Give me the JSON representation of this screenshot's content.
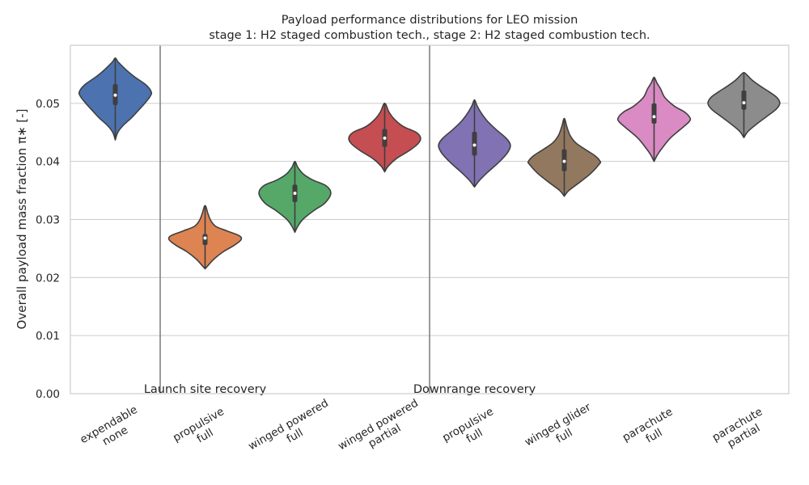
{
  "chart_data": {
    "type": "violin",
    "title": "Payload performance distributions for LEO mission",
    "subtitle": "stage 1: H2 staged combustion tech., stage 2: H2 staged combustion tech.",
    "ylabel": "Overall payload mass fraction π∗ [-]",
    "xlabel": "",
    "ylim": [
      0,
      0.06
    ],
    "yticks": [
      "0.00",
      "0.01",
      "0.02",
      "0.03",
      "0.04",
      "0.05"
    ],
    "grid": "horizontal",
    "categories": [
      {
        "line1": "expendable",
        "line2": "none",
        "color": "#4c72b0",
        "min": 0.0437,
        "max": 0.0578,
        "q1": 0.0497,
        "median": 0.0514,
        "q3": 0.0533,
        "profile": [
          [
            0.0437,
            0
          ],
          [
            0.045,
            0.07
          ],
          [
            0.0462,
            0.22
          ],
          [
            0.0475,
            0.45
          ],
          [
            0.0487,
            0.63
          ],
          [
            0.05,
            0.82
          ],
          [
            0.0512,
            0.97
          ],
          [
            0.052,
            1.0
          ],
          [
            0.0532,
            0.85
          ],
          [
            0.0545,
            0.55
          ],
          [
            0.0555,
            0.35
          ],
          [
            0.0565,
            0.18
          ],
          [
            0.0572,
            0.07
          ],
          [
            0.0578,
            0
          ]
        ]
      },
      {
        "line1": "propulsive",
        "line2": "full",
        "color": "#dd8452",
        "min": 0.0215,
        "max": 0.0324,
        "q1": 0.0256,
        "median": 0.0268,
        "q3": 0.0275,
        "profile": [
          [
            0.0215,
            0
          ],
          [
            0.0222,
            0.1
          ],
          [
            0.0232,
            0.25
          ],
          [
            0.0245,
            0.52
          ],
          [
            0.0255,
            0.8
          ],
          [
            0.0265,
            1.0
          ],
          [
            0.0272,
            0.95
          ],
          [
            0.028,
            0.62
          ],
          [
            0.0288,
            0.3
          ],
          [
            0.0298,
            0.16
          ],
          [
            0.031,
            0.08
          ],
          [
            0.0324,
            0
          ]
        ]
      },
      {
        "line1": "winged powered",
        "line2": "full",
        "color": "#55a868",
        "min": 0.0278,
        "max": 0.04,
        "q1": 0.033,
        "median": 0.0345,
        "q3": 0.036,
        "profile": [
          [
            0.0278,
            0
          ],
          [
            0.0288,
            0.08
          ],
          [
            0.03,
            0.22
          ],
          [
            0.0315,
            0.52
          ],
          [
            0.0328,
            0.83
          ],
          [
            0.0345,
            1.0
          ],
          [
            0.0358,
            0.87
          ],
          [
            0.0368,
            0.5
          ],
          [
            0.0378,
            0.24
          ],
          [
            0.039,
            0.08
          ],
          [
            0.04,
            0
          ]
        ]
      },
      {
        "line1": "winged powered",
        "line2": "partial",
        "color": "#c44e52",
        "min": 0.0382,
        "max": 0.05,
        "q1": 0.0425,
        "median": 0.044,
        "q3": 0.0456,
        "profile": [
          [
            0.0382,
            0
          ],
          [
            0.0392,
            0.1
          ],
          [
            0.0405,
            0.33
          ],
          [
            0.0418,
            0.67
          ],
          [
            0.043,
            0.92
          ],
          [
            0.044,
            1.0
          ],
          [
            0.045,
            0.88
          ],
          [
            0.046,
            0.52
          ],
          [
            0.0472,
            0.28
          ],
          [
            0.0485,
            0.12
          ],
          [
            0.05,
            0
          ]
        ]
      },
      {
        "line1": "propulsive",
        "line2": "full",
        "color": "#8172b3",
        "min": 0.0356,
        "max": 0.0506,
        "q1": 0.041,
        "median": 0.0428,
        "q3": 0.0451,
        "profile": [
          [
            0.0356,
            0
          ],
          [
            0.0368,
            0.15
          ],
          [
            0.0382,
            0.38
          ],
          [
            0.0398,
            0.67
          ],
          [
            0.0415,
            0.92
          ],
          [
            0.0428,
            1.0
          ],
          [
            0.044,
            0.88
          ],
          [
            0.0455,
            0.6
          ],
          [
            0.047,
            0.35
          ],
          [
            0.0485,
            0.17
          ],
          [
            0.0496,
            0.07
          ],
          [
            0.0506,
            0
          ]
        ]
      },
      {
        "line1": "winged glider",
        "line2": "full",
        "color": "#937860",
        "min": 0.034,
        "max": 0.0474,
        "q1": 0.0383,
        "median": 0.04,
        "q3": 0.0421,
        "profile": [
          [
            0.034,
            0
          ],
          [
            0.035,
            0.13
          ],
          [
            0.0365,
            0.45
          ],
          [
            0.038,
            0.75
          ],
          [
            0.0395,
            0.97
          ],
          [
            0.04,
            1.0
          ],
          [
            0.041,
            0.85
          ],
          [
            0.042,
            0.6
          ],
          [
            0.0432,
            0.32
          ],
          [
            0.0445,
            0.16
          ],
          [
            0.046,
            0.07
          ],
          [
            0.0474,
            0
          ]
        ]
      },
      {
        "line1": "parachute",
        "line2": "full",
        "color": "#da8bc3",
        "min": 0.04,
        "max": 0.0545,
        "q1": 0.0465,
        "median": 0.0477,
        "q3": 0.05,
        "profile": [
          [
            0.04,
            0
          ],
          [
            0.0412,
            0.1
          ],
          [
            0.0425,
            0.25
          ],
          [
            0.044,
            0.45
          ],
          [
            0.0455,
            0.73
          ],
          [
            0.0468,
            0.97
          ],
          [
            0.0475,
            1.0
          ],
          [
            0.0485,
            0.85
          ],
          [
            0.0495,
            0.57
          ],
          [
            0.051,
            0.3
          ],
          [
            0.0525,
            0.18
          ],
          [
            0.0535,
            0.08
          ],
          [
            0.0545,
            0
          ]
        ]
      },
      {
        "line1": "parachute",
        "line2": "partial",
        "color": "#8c8c8c",
        "min": 0.0441,
        "max": 0.0553,
        "q1": 0.0489,
        "median": 0.0501,
        "q3": 0.0522,
        "profile": [
          [
            0.0441,
            0
          ],
          [
            0.0452,
            0.12
          ],
          [
            0.0465,
            0.37
          ],
          [
            0.0478,
            0.65
          ],
          [
            0.049,
            0.9
          ],
          [
            0.05,
            1.0
          ],
          [
            0.051,
            0.92
          ],
          [
            0.052,
            0.7
          ],
          [
            0.053,
            0.45
          ],
          [
            0.054,
            0.23
          ],
          [
            0.0548,
            0.1
          ],
          [
            0.0553,
            0
          ]
        ]
      }
    ],
    "group_labels": [
      "Launch site recovery",
      "Downrange recovery"
    ],
    "separators_after_category": [
      0,
      3
    ]
  }
}
